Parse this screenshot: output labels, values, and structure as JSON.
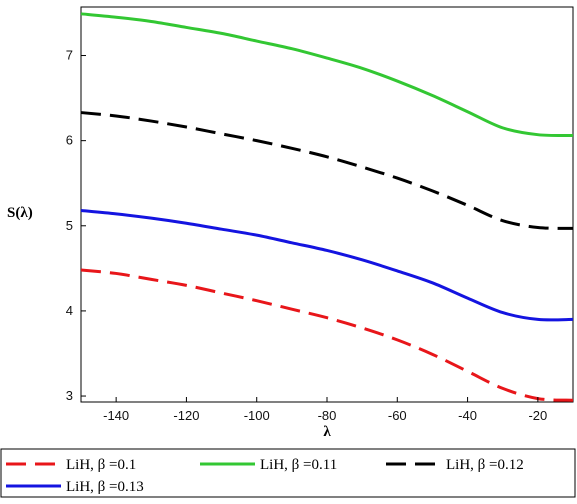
{
  "chart_data": {
    "type": "line",
    "title": "",
    "xlabel": "λ",
    "ylabel": "S(λ)",
    "xlim": [
      -150,
      -10
    ],
    "ylim": [
      2.93,
      7.57
    ],
    "xticks": [
      -140,
      -120,
      -100,
      -80,
      -60,
      -40,
      -20
    ],
    "yticks": [
      3,
      4,
      5,
      6,
      7
    ],
    "x": [
      -150,
      -140,
      -130,
      -120,
      -110,
      -100,
      -90,
      -80,
      -70,
      -60,
      -50,
      -40,
      -30,
      -20,
      -10
    ],
    "series": [
      {
        "name": "LiH, β =0.1",
        "color": "#e8161a",
        "dash": "dashed",
        "values": [
          4.48,
          4.44,
          4.37,
          4.3,
          4.21,
          4.12,
          4.02,
          3.92,
          3.8,
          3.66,
          3.49,
          3.29,
          3.09,
          2.97,
          2.95
        ]
      },
      {
        "name": "LiH, β =0.11",
        "color": "#33c733",
        "dash": "solid",
        "values": [
          7.49,
          7.45,
          7.4,
          7.33,
          7.26,
          7.17,
          7.08,
          6.97,
          6.85,
          6.7,
          6.53,
          6.34,
          6.15,
          6.07,
          6.06
        ]
      },
      {
        "name": "LiH, β =0.12",
        "color": "#000000",
        "dash": "dashed",
        "values": [
          6.33,
          6.29,
          6.23,
          6.16,
          6.08,
          6.0,
          5.91,
          5.81,
          5.69,
          5.56,
          5.41,
          5.24,
          5.06,
          4.98,
          4.97
        ]
      },
      {
        "name": "LiH, β =0.13",
        "color": "#1414e0",
        "dash": "solid",
        "values": [
          5.18,
          5.14,
          5.09,
          5.03,
          4.96,
          4.89,
          4.8,
          4.71,
          4.6,
          4.47,
          4.33,
          4.15,
          3.98,
          3.9,
          3.9
        ]
      }
    ],
    "grid": false,
    "legend": "bottom"
  }
}
